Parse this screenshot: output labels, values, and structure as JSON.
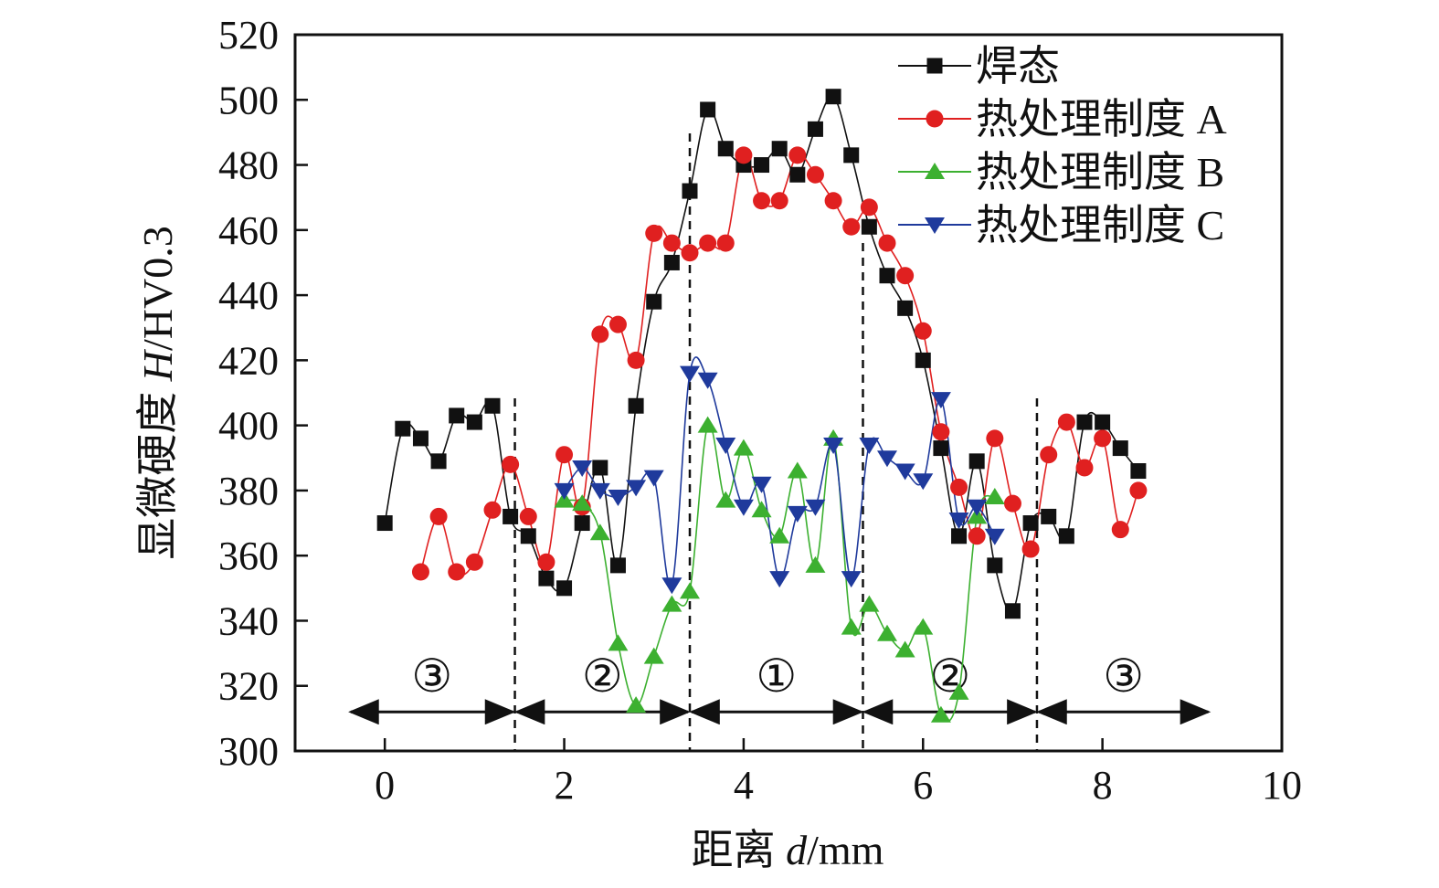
{
  "chart_data": {
    "type": "line",
    "title": "",
    "xlabel_prefix": "距离 ",
    "xlabel_var": "d",
    "xlabel_unit": "/mm",
    "ylabel_prefix": "显微硬度 ",
    "ylabel_var": "H",
    "ylabel_unit": "/HV0.3",
    "xlim": [
      -1,
      10
    ],
    "ylim": [
      300,
      520
    ],
    "x_ticks": [
      0,
      2,
      4,
      6,
      8,
      10
    ],
    "x_tick_labels": [
      "0",
      "2",
      "4",
      "6",
      "8",
      "10"
    ],
    "y_ticks": [
      300,
      320,
      340,
      360,
      380,
      400,
      420,
      440,
      460,
      480,
      500,
      520
    ],
    "y_tick_labels": [
      "300",
      "320",
      "340",
      "360",
      "380",
      "400",
      "420",
      "440",
      "460",
      "480",
      "500",
      "520"
    ],
    "grid": false,
    "legend_position": "top-right",
    "zone_boundaries": [
      1.45,
      3.4,
      5.33,
      7.27
    ],
    "zones": [
      {
        "label": "③",
        "from": -0.4,
        "to": 1.45
      },
      {
        "label": "②",
        "from": 1.45,
        "to": 3.4
      },
      {
        "label": "①",
        "from": 3.4,
        "to": 5.33
      },
      {
        "label": "②",
        "from": 5.33,
        "to": 7.27
      },
      {
        "label": "③",
        "from": 7.27,
        "to": 9.2
      }
    ],
    "zone_arrow_y": 312,
    "series": [
      {
        "name": "焊态",
        "color": "#111111",
        "marker": "square",
        "x": [
          0,
          0.2,
          0.4,
          0.6,
          0.8,
          1.0,
          1.2,
          1.4,
          1.6,
          1.8,
          2.0,
          2.2,
          2.4,
          2.6,
          2.8,
          3.0,
          3.2,
          3.4,
          3.6,
          3.8,
          4.0,
          4.2,
          4.4,
          4.6,
          4.8,
          5.0,
          5.2,
          5.4,
          5.6,
          5.8,
          6.0,
          6.2,
          6.4,
          6.6,
          6.8,
          7.0,
          7.2,
          7.4,
          7.6,
          7.8,
          8.0,
          8.2,
          8.4
        ],
        "values": [
          370,
          399,
          396,
          389,
          403,
          401,
          406,
          372,
          366,
          353,
          350,
          370,
          387,
          357,
          406,
          438,
          450,
          472,
          497,
          485,
          480,
          480,
          485,
          477,
          491,
          501,
          483,
          461,
          446,
          436,
          420,
          393,
          366,
          389,
          357,
          343,
          370,
          372,
          366,
          401,
          401,
          393,
          386
        ]
      },
      {
        "name": "热处理制度 A",
        "color": "#e02020",
        "marker": "circle",
        "x": [
          0.4,
          0.6,
          0.8,
          1.0,
          1.2,
          1.4,
          1.6,
          1.8,
          2.0,
          2.2,
          2.4,
          2.6,
          2.8,
          3.0,
          3.2,
          3.4,
          3.6,
          3.8,
          4.0,
          4.2,
          4.4,
          4.6,
          4.8,
          5.0,
          5.2,
          5.4,
          5.6,
          5.8,
          6.0,
          6.2,
          6.4,
          6.6,
          6.8,
          7.0,
          7.2,
          7.4,
          7.6,
          7.8,
          8.0,
          8.2,
          8.4
        ],
        "values": [
          355,
          372,
          355,
          358,
          374,
          388,
          372,
          358,
          391,
          375,
          428,
          431,
          420,
          459,
          456,
          453,
          456,
          456,
          483,
          469,
          469,
          483,
          477,
          469,
          461,
          467,
          456,
          446,
          429,
          398,
          381,
          366,
          396,
          376,
          362,
          391,
          401,
          387,
          396,
          368,
          380
        ]
      },
      {
        "name": "热处理制度 B",
        "color": "#3cb030",
        "marker": "triangle-up",
        "x": [
          2.0,
          2.2,
          2.4,
          2.6,
          2.8,
          3.0,
          3.2,
          3.4,
          3.6,
          3.8,
          4.0,
          4.2,
          4.4,
          4.6,
          4.8,
          5.0,
          5.2,
          5.4,
          5.6,
          5.8,
          6.0,
          6.2,
          6.4,
          6.6,
          6.8
        ],
        "values": [
          377,
          376,
          367,
          333,
          314,
          329,
          345,
          349,
          400,
          377,
          393,
          374,
          366,
          386,
          357,
          396,
          338,
          345,
          336,
          331,
          338,
          311,
          318,
          372,
          378
        ]
      },
      {
        "name": "热处理制度 C",
        "color": "#1f3a9c",
        "marker": "triangle-down",
        "x": [
          2.0,
          2.2,
          2.4,
          2.6,
          2.8,
          3.0,
          3.2,
          3.4,
          3.6,
          3.8,
          4.0,
          4.2,
          4.4,
          4.6,
          4.8,
          5.0,
          5.2,
          5.4,
          5.6,
          5.8,
          6.0,
          6.2,
          6.4,
          6.6,
          6.8
        ],
        "values": [
          380,
          387,
          380,
          378,
          381,
          384,
          351,
          416,
          414,
          394,
          375,
          382,
          353,
          373,
          375,
          394,
          353,
          394,
          390,
          386,
          383,
          408,
          371,
          375,
          366
        ]
      }
    ]
  }
}
